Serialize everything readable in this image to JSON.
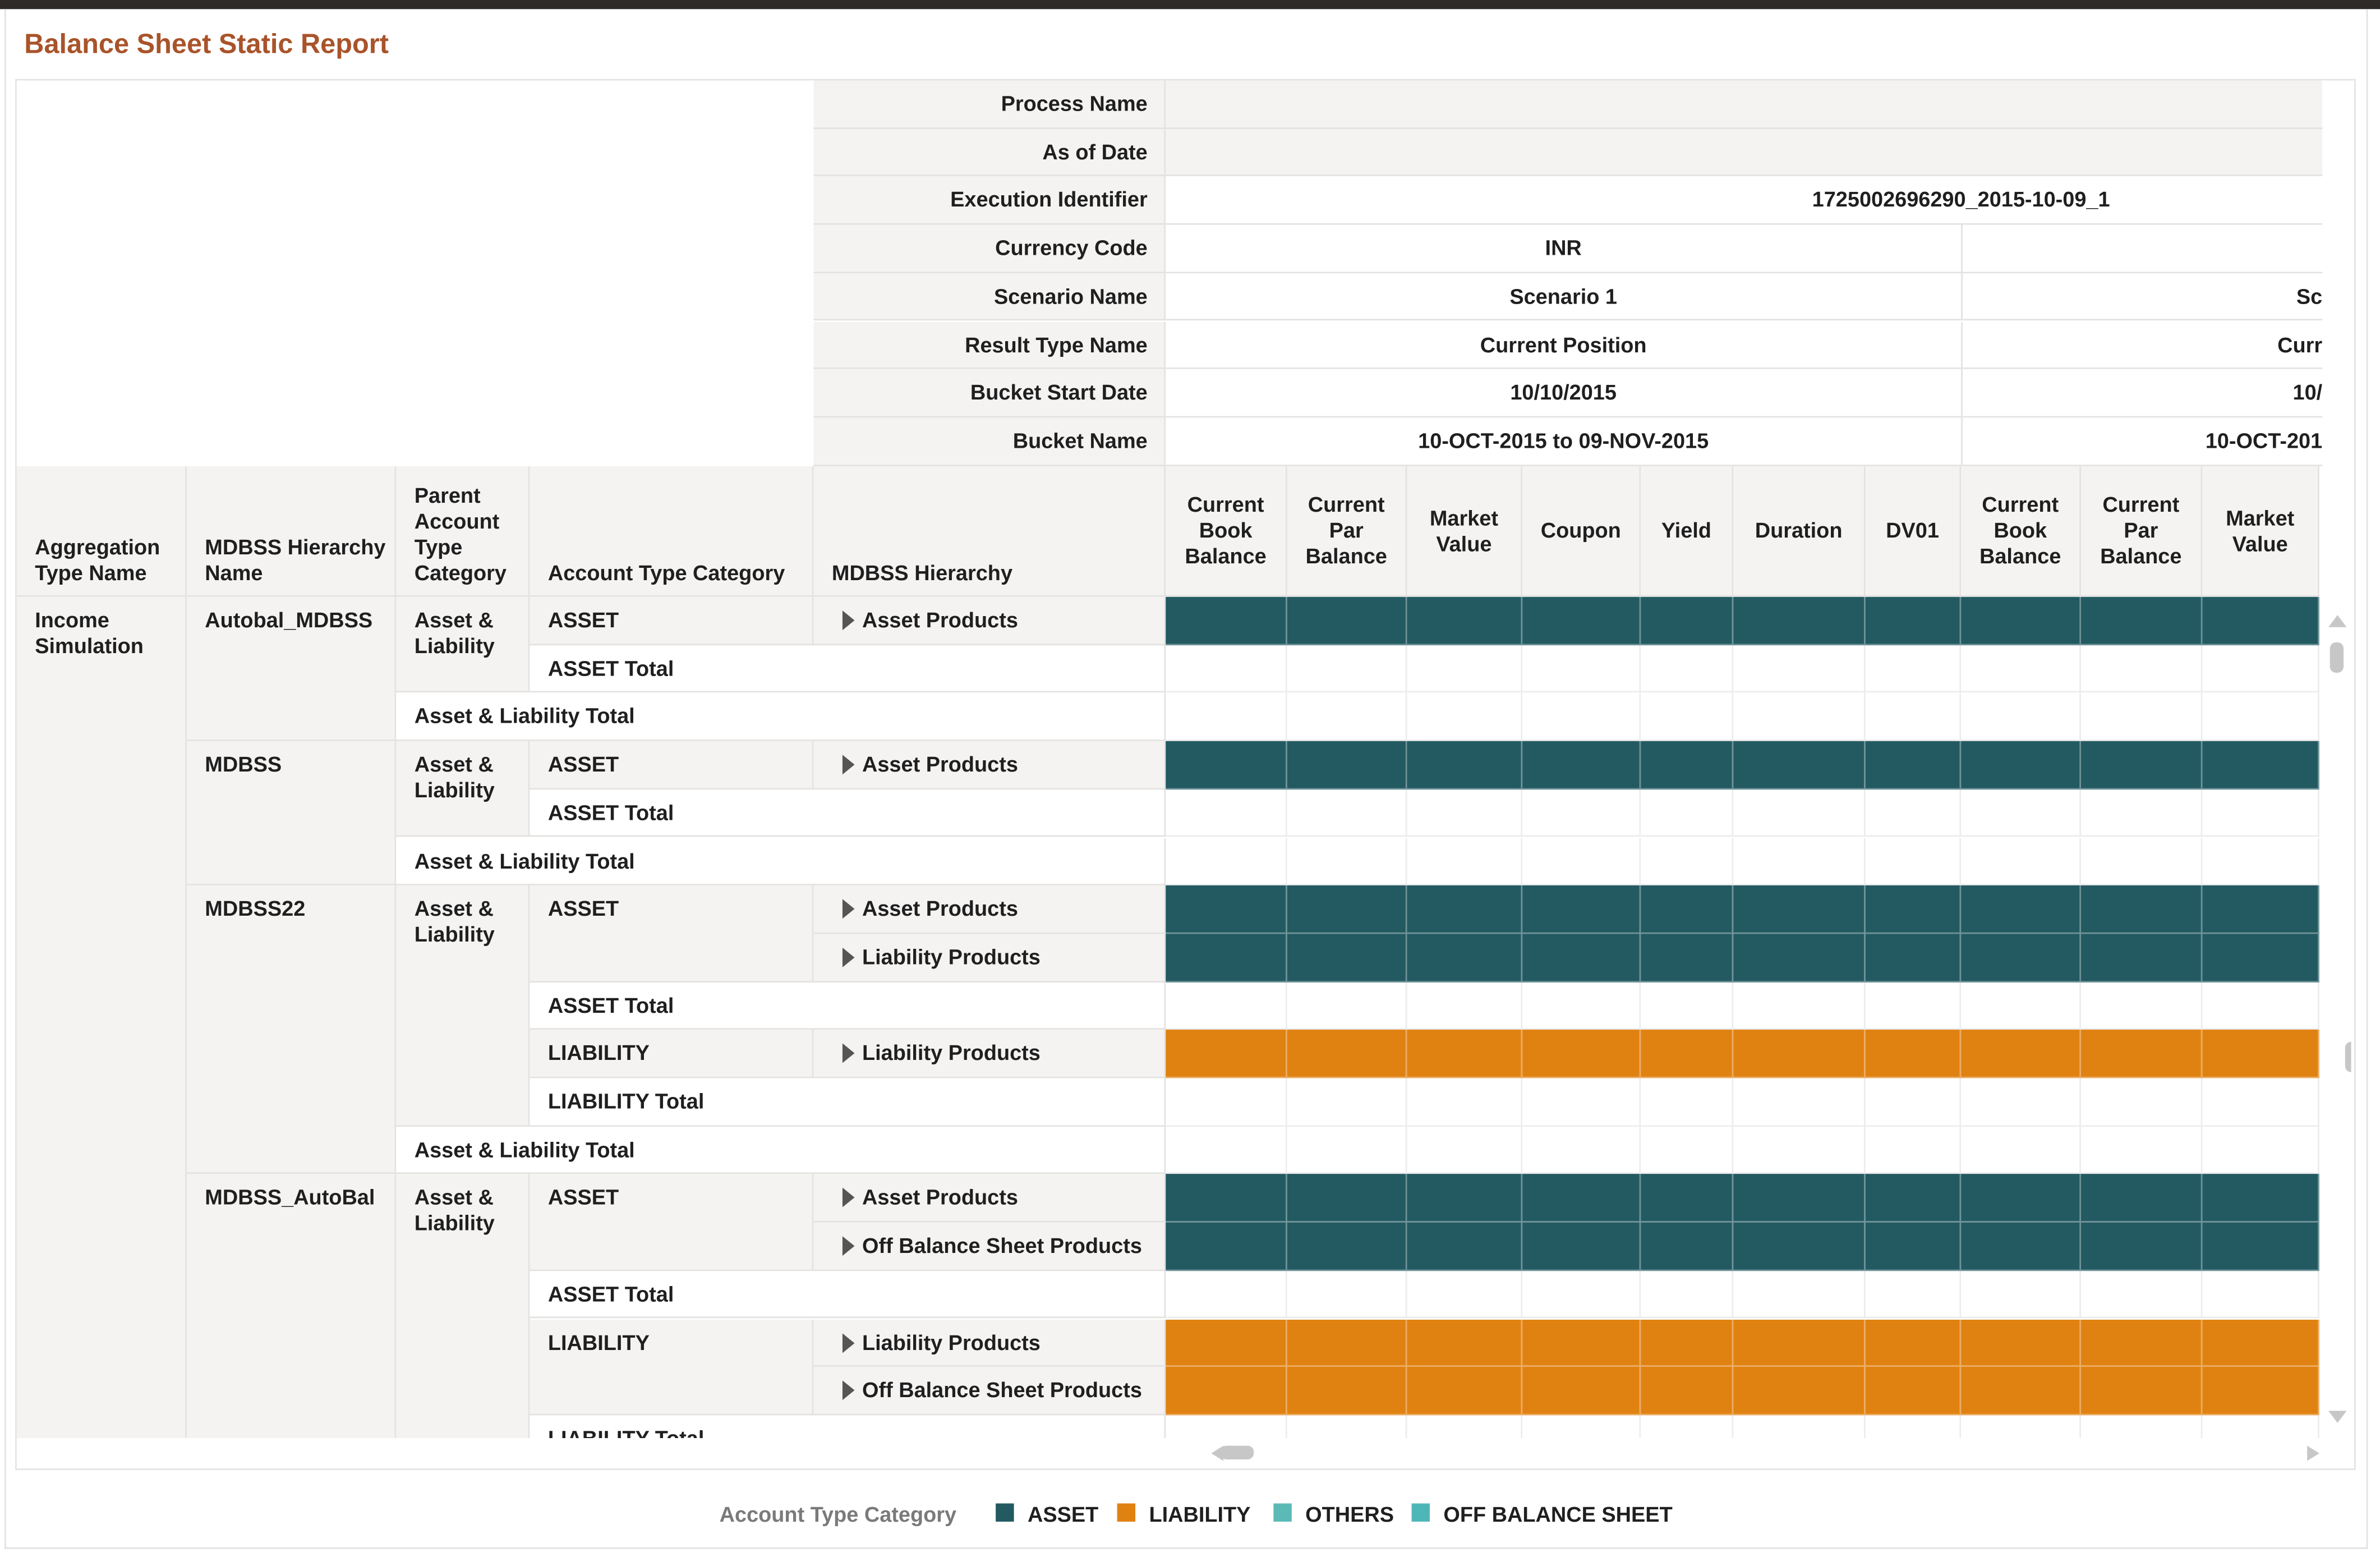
{
  "title": "Balance Sheet Static Report",
  "header_fields": [
    {
      "label": "Process Name"
    },
    {
      "label": "As of Date"
    },
    {
      "label": "Execution Identifier",
      "value": "1725002696290_2015-10-09_1"
    },
    {
      "label": "Currency Code",
      "values": [
        "INR"
      ]
    },
    {
      "label": "Scenario Name",
      "values": [
        "Scenario 1",
        "Sc"
      ]
    },
    {
      "label": "Result Type Name",
      "values": [
        "Current Position",
        "Curr"
      ]
    },
    {
      "label": "Bucket Start Date",
      "values": [
        "10/10/2015",
        "10/"
      ]
    },
    {
      "label": "Bucket Name",
      "values": [
        "10-OCT-2015 to 09-NOV-2015",
        "10-OCT-201"
      ]
    }
  ],
  "row_headers": [
    "Aggregation Type Name",
    "MDBSS Hierarchy Name",
    "Parent Account Type Category",
    "Account Type Category",
    "MDBSS Hierarchy"
  ],
  "measure_headers": [
    "Current Book Balance",
    "Current Par Balance",
    "Market Value",
    "Coupon",
    "Yield",
    "Duration",
    "DV01",
    "Current Book Balance",
    "Current Par Balance",
    "Market Value"
  ],
  "rows": [
    {
      "agg": "Income Simulation",
      "hier": "Autobal_MDBSS",
      "parent": "Asset & Liability",
      "cat": "ASSET",
      "item": "Asset Products",
      "fill": 0
    },
    {
      "total": "ASSET Total",
      "level": 3
    },
    {
      "total": "Asset & Liability Total",
      "level": 2
    },
    {
      "hier": "MDBSS",
      "parent": "Asset & Liability",
      "cat": "ASSET",
      "item": "Asset Products",
      "fill": 0
    },
    {
      "total": "ASSET Total",
      "level": 3
    },
    {
      "total": "Asset & Liability Total",
      "level": 2
    },
    {
      "hier": "MDBSS22",
      "parent": "Asset & Liability",
      "cat": "ASSET",
      "item": "Asset Products",
      "fill": 0
    },
    {
      "item": "Liability Products",
      "fill": 0
    },
    {
      "total": "ASSET Total",
      "level": 3
    },
    {
      "cat": "LIABILITY",
      "item": "Liability Products",
      "fill": 1
    },
    {
      "total": "LIABILITY Total",
      "level": 3
    },
    {
      "total": "Asset & Liability Total",
      "level": 2
    },
    {
      "hier": "MDBSS_AutoBal",
      "parent": "Asset & Liability",
      "cat": "ASSET",
      "item": "Asset Products",
      "fill": 0
    },
    {
      "item": "Off Balance Sheet Products",
      "fill": 0
    },
    {
      "total": "ASSET Total",
      "level": 3
    },
    {
      "cat": "LIABILITY",
      "item": "Liability Products",
      "fill": 1
    },
    {
      "item": "Off Balance Sheet Products",
      "fill": 1
    },
    {
      "total": "LIABILITY Total",
      "level": 3
    }
  ],
  "legend": {
    "title": "Account Type Category",
    "items": [
      {
        "name": "ASSET",
        "color": "#235a62"
      },
      {
        "name": "LIABILITY",
        "color": "#e08212"
      },
      {
        "name": "OTHERS",
        "color": "#5cbab6"
      },
      {
        "name": "OFF BALANCE SHEET",
        "color": "#4fb6b8"
      }
    ]
  }
}
